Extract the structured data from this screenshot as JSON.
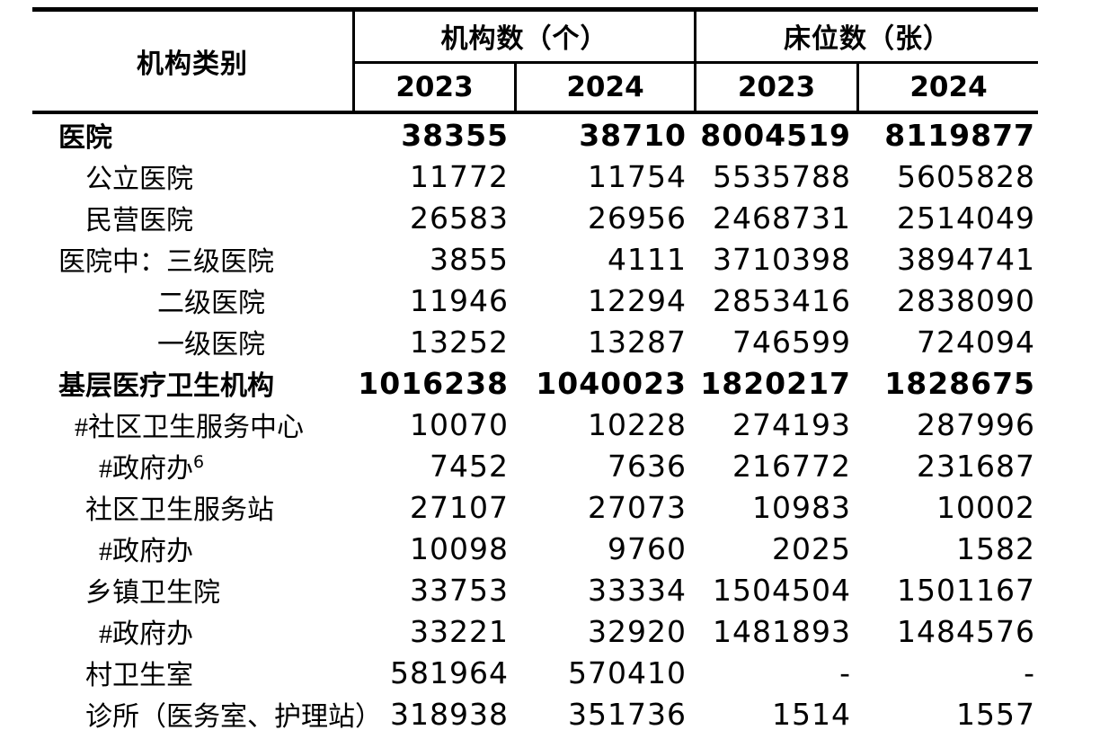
{
  "colors": {
    "text": "#000000",
    "border": "#000000",
    "background": "#ffffff"
  },
  "header": {
    "category": "机构类别",
    "group1": "机构数（个）",
    "group2": "床位数（张）",
    "years": [
      "2023",
      "2024",
      "2023",
      "2024"
    ]
  },
  "rows": [
    {
      "label": "医院",
      "sup": "",
      "v": [
        "38355",
        "38710",
        "8004519",
        "8119877"
      ]
    },
    {
      "label": "公立医院",
      "sup": "",
      "v": [
        "11772",
        "11754",
        "5535788",
        "5605828"
      ]
    },
    {
      "label": "民营医院",
      "sup": "",
      "v": [
        "26583",
        "26956",
        "2468731",
        "2514049"
      ]
    },
    {
      "label": "医院中：三级医院",
      "sup": "",
      "v": [
        "3855",
        "4111",
        "3710398",
        "3894741"
      ]
    },
    {
      "label": "二级医院",
      "sup": "",
      "v": [
        "11946",
        "12294",
        "2853416",
        "2838090"
      ]
    },
    {
      "label": "一级医院",
      "sup": "",
      "v": [
        "13252",
        "13287",
        "746599",
        "724094"
      ]
    },
    {
      "label": "基层医疗卫生机构",
      "sup": "",
      "v": [
        "1016238",
        "1040023",
        "1820217",
        "1828675"
      ]
    },
    {
      "label": "#社区卫生服务中心",
      "sup": "",
      "v": [
        "10070",
        "10228",
        "274193",
        "287996"
      ]
    },
    {
      "label": "#政府办",
      "sup": "6",
      "v": [
        "7452",
        "7636",
        "216772",
        "231687"
      ]
    },
    {
      "label": "社区卫生服务站",
      "sup": "",
      "v": [
        "27107",
        "27073",
        "10983",
        "10002"
      ]
    },
    {
      "label": "#政府办",
      "sup": "",
      "v": [
        "10098",
        "9760",
        "2025",
        "1582"
      ]
    },
    {
      "label": "乡镇卫生院",
      "sup": "",
      "v": [
        "33753",
        "33334",
        "1504504",
        "1501167"
      ]
    },
    {
      "label": "#政府办",
      "sup": "",
      "v": [
        "33221",
        "32920",
        "1481893",
        "1484576"
      ]
    },
    {
      "label": "村卫生室",
      "sup": "",
      "v": [
        "581964",
        "570410",
        "-",
        "-"
      ]
    },
    {
      "label": "诊所（医务室、护理站）",
      "sup": "",
      "v": [
        "318938",
        "351736",
        "1514",
        "1557"
      ]
    }
  ]
}
